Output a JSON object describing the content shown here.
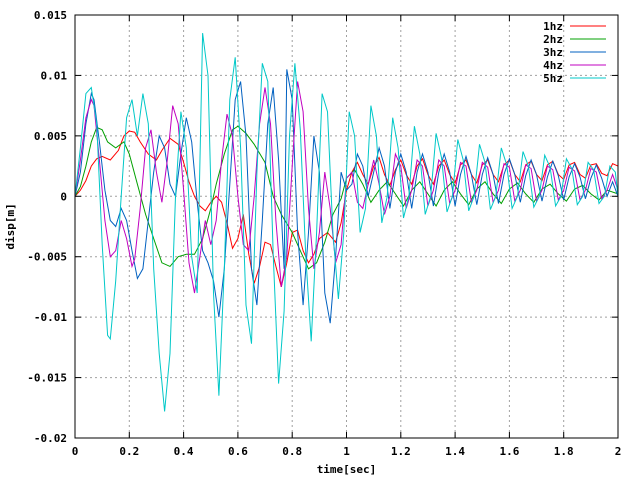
{
  "chart_data": {
    "type": "line",
    "title": "",
    "xlabel": "time[sec]",
    "ylabel": "disp[m]",
    "xlim": [
      0,
      2
    ],
    "ylim": [
      -0.02,
      0.015
    ],
    "grid": true,
    "legend_position": "top-right",
    "x_ticks": [
      0,
      0.2,
      0.4,
      0.6,
      0.8,
      1,
      1.2,
      1.4,
      1.6,
      1.8,
      2
    ],
    "x_tick_labels": [
      "0",
      "0.2",
      "0.4",
      "0.6",
      "0.8",
      "1",
      "1.2",
      "1.4",
      "1.6",
      "1.8",
      "2"
    ],
    "y_ticks": [
      -0.02,
      -0.015,
      -0.01,
      -0.005,
      0,
      0.005,
      0.01,
      0.015
    ],
    "y_tick_labels": [
      "-0.02",
      "-0.015",
      "-0.01",
      "-0.005",
      "0",
      "0.005",
      "0.01",
      "0.015"
    ],
    "series": [
      {
        "name": "1hz",
        "color": "#ff0000",
        "x": [
          0,
          0.02,
          0.04,
          0.06,
          0.08,
          0.1,
          0.13,
          0.16,
          0.18,
          0.2,
          0.22,
          0.24,
          0.27,
          0.3,
          0.32,
          0.35,
          0.38,
          0.4,
          0.42,
          0.44,
          0.46,
          0.48,
          0.5,
          0.52,
          0.54,
          0.56,
          0.58,
          0.6,
          0.62,
          0.64,
          0.66,
          0.68,
          0.7,
          0.72,
          0.74,
          0.76,
          0.78,
          0.8,
          0.82,
          0.84,
          0.86,
          0.88,
          0.9,
          0.93,
          0.96,
          0.98,
          1.0,
          1.02,
          1.04,
          1.06,
          1.08,
          1.1,
          1.12,
          1.14,
          1.16,
          1.18,
          1.2,
          1.22,
          1.24,
          1.26,
          1.28,
          1.3,
          1.32,
          1.34,
          1.36,
          1.38,
          1.4,
          1.42,
          1.44,
          1.46,
          1.48,
          1.5,
          1.52,
          1.54,
          1.56,
          1.58,
          1.6,
          1.62,
          1.64,
          1.66,
          1.68,
          1.7,
          1.72,
          1.74,
          1.76,
          1.78,
          1.8,
          1.82,
          1.84,
          1.86,
          1.88,
          1.9,
          1.92,
          1.94,
          1.96,
          1.98,
          2.0
        ],
        "y": [
          0,
          0.0005,
          0.0013,
          0.0025,
          0.0031,
          0.0033,
          0.003,
          0.0038,
          0.005,
          0.0054,
          0.0053,
          0.0045,
          0.0035,
          0.003,
          0.0038,
          0.0048,
          0.0043,
          0.0028,
          0.0012,
          0.0,
          -0.0008,
          -0.0012,
          -0.0005,
          0.0,
          -0.0005,
          -0.0022,
          -0.0043,
          -0.0035,
          -0.0015,
          -0.0048,
          -0.0072,
          -0.0058,
          -0.0038,
          -0.004,
          -0.0058,
          -0.0075,
          -0.0055,
          -0.003,
          -0.0028,
          -0.0045,
          -0.0055,
          -0.0048,
          -0.0035,
          -0.003,
          -0.0038,
          -0.0022,
          0.0005,
          0.002,
          0.0028,
          0.0018,
          0.001,
          0.0025,
          0.0032,
          0.0018,
          0.0009,
          0.0022,
          0.003,
          0.0018,
          0.001,
          0.0025,
          0.0031,
          0.0018,
          0.001,
          0.0025,
          0.003,
          0.0018,
          0.0011,
          0.0026,
          0.003,
          0.0018,
          0.0011,
          0.0026,
          0.003,
          0.0018,
          0.0012,
          0.0026,
          0.003,
          0.0018,
          0.0012,
          0.0026,
          0.0029,
          0.0018,
          0.0013,
          0.0026,
          0.0029,
          0.0018,
          0.0014,
          0.0026,
          0.0028,
          0.0018,
          0.0015,
          0.0026,
          0.0027,
          0.0019,
          0.0017,
          0.0027,
          0.0025
        ]
      },
      {
        "name": "2hz",
        "color": "#00a000",
        "x": [
          0,
          0.02,
          0.04,
          0.06,
          0.08,
          0.1,
          0.12,
          0.15,
          0.18,
          0.2,
          0.23,
          0.26,
          0.29,
          0.32,
          0.35,
          0.38,
          0.41,
          0.44,
          0.47,
          0.5,
          0.52,
          0.55,
          0.58,
          0.6,
          0.63,
          0.66,
          0.7,
          0.73,
          0.76,
          0.8,
          0.83,
          0.86,
          0.89,
          0.92,
          0.95,
          0.98,
          1.0,
          1.03,
          1.06,
          1.09,
          1.12,
          1.15,
          1.18,
          1.21,
          1.24,
          1.27,
          1.3,
          1.33,
          1.36,
          1.39,
          1.42,
          1.45,
          1.48,
          1.51,
          1.54,
          1.57,
          1.6,
          1.63,
          1.66,
          1.69,
          1.72,
          1.75,
          1.78,
          1.81,
          1.84,
          1.87,
          1.9,
          1.93,
          1.96,
          2.0
        ],
        "y": [
          0,
          0.0008,
          0.0025,
          0.0045,
          0.0057,
          0.0055,
          0.0045,
          0.004,
          0.0045,
          0.0035,
          0.001,
          -0.0015,
          -0.0035,
          -0.0055,
          -0.0058,
          -0.005,
          -0.0048,
          -0.0048,
          -0.0035,
          -0.001,
          0.001,
          0.0035,
          0.0055,
          0.0058,
          0.0052,
          0.0043,
          0.0028,
          0.0,
          -0.0015,
          -0.003,
          -0.0045,
          -0.006,
          -0.0055,
          -0.0038,
          -0.0015,
          -0.0002,
          0.0015,
          0.0022,
          0.001,
          -0.0005,
          0.0005,
          0.0012,
          0.0002,
          -0.0008,
          0.0005,
          0.0012,
          0.0002,
          -0.0008,
          0.0005,
          0.0012,
          0.0002,
          -0.0007,
          0.0006,
          0.0012,
          0.0002,
          -0.0006,
          0.0006,
          0.0011,
          0.0002,
          -0.0005,
          0.0006,
          0.001,
          0.0002,
          -0.0004,
          0.0006,
          0.0009,
          0.0002,
          -0.0003,
          0.0005,
          0.0002
        ]
      },
      {
        "name": "3hz",
        "color": "#0060c0",
        "x": [
          0,
          0.02,
          0.04,
          0.06,
          0.07,
          0.09,
          0.11,
          0.13,
          0.15,
          0.17,
          0.19,
          0.21,
          0.23,
          0.25,
          0.27,
          0.29,
          0.31,
          0.33,
          0.35,
          0.37,
          0.39,
          0.41,
          0.43,
          0.45,
          0.47,
          0.49,
          0.51,
          0.53,
          0.55,
          0.57,
          0.59,
          0.61,
          0.63,
          0.65,
          0.67,
          0.69,
          0.71,
          0.73,
          0.75,
          0.77,
          0.78,
          0.8,
          0.82,
          0.84,
          0.86,
          0.88,
          0.9,
          0.92,
          0.94,
          0.96,
          0.98,
          1.0,
          1.02,
          1.04,
          1.06,
          1.08,
          1.1,
          1.12,
          1.14,
          1.16,
          1.18,
          1.2,
          1.22,
          1.24,
          1.26,
          1.28,
          1.3,
          1.32,
          1.34,
          1.36,
          1.38,
          1.4,
          1.42,
          1.44,
          1.46,
          1.48,
          1.5,
          1.52,
          1.54,
          1.56,
          1.58,
          1.6,
          1.62,
          1.64,
          1.66,
          1.68,
          1.7,
          1.72,
          1.74,
          1.76,
          1.78,
          1.8,
          1.82,
          1.84,
          1.86,
          1.88,
          1.9,
          1.92,
          1.94,
          1.96,
          1.98,
          2.0
        ],
        "y": [
          0,
          0.002,
          0.006,
          0.0085,
          0.008,
          0.0045,
          0.0005,
          -0.002,
          -0.0025,
          -0.001,
          -0.002,
          -0.0045,
          -0.0068,
          -0.006,
          -0.002,
          0.002,
          0.005,
          0.004,
          0.001,
          0.0,
          0.0035,
          0.0065,
          0.0045,
          -0.0005,
          -0.0045,
          -0.0055,
          -0.007,
          -0.01,
          -0.006,
          0.001,
          0.008,
          0.0095,
          0.005,
          -0.006,
          -0.009,
          -0.002,
          0.006,
          0.009,
          0.003,
          -0.006,
          0.0105,
          0.008,
          -0.003,
          -0.009,
          -0.003,
          0.005,
          0.002,
          -0.008,
          -0.0105,
          -0.005,
          0.002,
          0.0005,
          0.001,
          0.0035,
          0.0025,
          0.0,
          0.002,
          0.004,
          0.0025,
          -0.001,
          0.002,
          0.0035,
          0.002,
          -0.001,
          0.002,
          0.0035,
          0.002,
          -0.0008,
          0.002,
          0.0035,
          0.002,
          -0.0008,
          0.0018,
          0.0033,
          0.0018,
          -0.0007,
          0.0018,
          0.0032,
          0.0018,
          -0.0006,
          0.0018,
          0.0031,
          0.0018,
          -0.0005,
          0.0017,
          0.003,
          0.0018,
          -0.0004,
          0.0016,
          0.0029,
          0.0017,
          -0.0003,
          0.0016,
          0.0027,
          0.0016,
          -0.0002,
          0.0015,
          0.0026,
          0.0015,
          0.0,
          0.0012,
          0.0
        ]
      },
      {
        "name": "4hz",
        "color": "#c000c0",
        "x": [
          0,
          0.02,
          0.04,
          0.06,
          0.07,
          0.09,
          0.11,
          0.13,
          0.15,
          0.17,
          0.19,
          0.21,
          0.22,
          0.24,
          0.26,
          0.28,
          0.3,
          0.32,
          0.34,
          0.36,
          0.38,
          0.4,
          0.42,
          0.44,
          0.46,
          0.48,
          0.5,
          0.52,
          0.54,
          0.56,
          0.58,
          0.6,
          0.62,
          0.64,
          0.66,
          0.68,
          0.7,
          0.72,
          0.74,
          0.76,
          0.78,
          0.8,
          0.82,
          0.84,
          0.86,
          0.88,
          0.9,
          0.92,
          0.94,
          0.96,
          0.98,
          1.0,
          1.02,
          1.04,
          1.06,
          1.08,
          1.1,
          1.12,
          1.14,
          1.16,
          1.18,
          1.2,
          1.22,
          1.24,
          1.26,
          1.28,
          1.3,
          1.32,
          1.34,
          1.36,
          1.38,
          1.4,
          1.42,
          1.44,
          1.46,
          1.48,
          1.5,
          1.52,
          1.54,
          1.56,
          1.58,
          1.6,
          1.62,
          1.64,
          1.66,
          1.68,
          1.7,
          1.72,
          1.74,
          1.76,
          1.78,
          1.8,
          1.82,
          1.84,
          1.86,
          1.88,
          1.9,
          1.92,
          1.94,
          1.96,
          1.98,
          2.0
        ],
        "y": [
          0,
          0.003,
          0.0065,
          0.008,
          0.0075,
          0.003,
          -0.002,
          -0.005,
          -0.0045,
          -0.002,
          -0.0035,
          -0.0058,
          -0.0052,
          -0.001,
          0.004,
          0.0055,
          0.002,
          -0.0005,
          0.003,
          0.0075,
          0.006,
          0.0005,
          -0.0055,
          -0.008,
          -0.005,
          -0.002,
          -0.004,
          -0.002,
          0.003,
          0.0068,
          0.005,
          0.0,
          -0.004,
          -0.0045,
          0.0,
          0.006,
          0.009,
          0.006,
          -0.002,
          -0.0075,
          -0.005,
          0.0025,
          0.0095,
          0.007,
          -0.001,
          -0.006,
          -0.003,
          0.002,
          -0.001,
          -0.0055,
          -0.004,
          0.0015,
          0.002,
          -0.0005,
          -0.001,
          0.001,
          0.003,
          0.001,
          -0.0015,
          0.0,
          0.0035,
          0.0025,
          -0.001,
          0.0005,
          0.003,
          0.0025,
          -0.0008,
          0.0005,
          0.003,
          0.0025,
          -0.0006,
          0.0005,
          0.0028,
          0.0025,
          -0.0005,
          0.0005,
          0.0028,
          0.0024,
          -0.0005,
          0.0005,
          0.0027,
          0.0024,
          -0.0004,
          0.0005,
          0.0026,
          0.0023,
          -0.0004,
          0.0005,
          0.0025,
          0.0022,
          -0.0003,
          0.0005,
          0.0024,
          0.0021,
          -0.0003,
          0.0005,
          0.0023,
          0.002,
          -0.0002,
          0.0005,
          0.0018,
          0.0005
        ]
      },
      {
        "name": "5hz",
        "color": "#00c8c8",
        "x": [
          0,
          0.02,
          0.04,
          0.06,
          0.08,
          0.1,
          0.12,
          0.13,
          0.15,
          0.17,
          0.19,
          0.21,
          0.23,
          0.25,
          0.27,
          0.29,
          0.31,
          0.33,
          0.35,
          0.37,
          0.39,
          0.41,
          0.43,
          0.45,
          0.47,
          0.49,
          0.51,
          0.53,
          0.55,
          0.57,
          0.59,
          0.61,
          0.63,
          0.65,
          0.67,
          0.69,
          0.71,
          0.73,
          0.75,
          0.77,
          0.79,
          0.81,
          0.83,
          0.85,
          0.87,
          0.89,
          0.91,
          0.93,
          0.95,
          0.97,
          0.99,
          1.01,
          1.03,
          1.05,
          1.07,
          1.09,
          1.11,
          1.13,
          1.15,
          1.17,
          1.19,
          1.21,
          1.23,
          1.25,
          1.27,
          1.29,
          1.31,
          1.33,
          1.35,
          1.37,
          1.39,
          1.41,
          1.43,
          1.45,
          1.47,
          1.49,
          1.51,
          1.53,
          1.55,
          1.57,
          1.59,
          1.61,
          1.63,
          1.65,
          1.67,
          1.69,
          1.71,
          1.73,
          1.75,
          1.77,
          1.79,
          1.81,
          1.83,
          1.85,
          1.87,
          1.89,
          1.91,
          1.93,
          1.95,
          1.97,
          1.99,
          2.0
        ],
        "y": [
          0,
          0.004,
          0.0085,
          0.009,
          0.006,
          -0.004,
          -0.0115,
          -0.0118,
          -0.007,
          0.0,
          0.0065,
          0.008,
          0.005,
          0.0085,
          0.006,
          -0.006,
          -0.013,
          -0.0178,
          -0.013,
          0.0,
          0.007,
          0.004,
          -0.005,
          -0.008,
          0.0135,
          0.01,
          -0.008,
          -0.0165,
          -0.006,
          0.008,
          0.0115,
          0.004,
          -0.009,
          -0.0122,
          0.002,
          0.011,
          0.0095,
          -0.0048,
          -0.0155,
          -0.0095,
          0.005,
          0.011,
          0.0055,
          -0.005,
          -0.012,
          -0.003,
          0.0085,
          0.007,
          -0.003,
          -0.0085,
          -0.003,
          0.007,
          0.005,
          -0.003,
          -0.001,
          0.0075,
          0.005,
          -0.0022,
          0.0,
          0.0065,
          0.004,
          -0.0018,
          0.0,
          0.0058,
          0.0035,
          -0.0015,
          0.0,
          0.0052,
          0.0032,
          -0.0013,
          0.0,
          0.0047,
          0.003,
          -0.0012,
          0.0,
          0.0043,
          0.0028,
          -0.0011,
          0.0,
          0.004,
          0.0026,
          -0.001,
          0.0,
          0.0037,
          0.0025,
          -0.0009,
          0.0,
          0.0034,
          0.0024,
          -0.0008,
          0.0,
          0.0031,
          0.0023,
          -0.0007,
          0.0,
          0.0028,
          0.0022,
          -0.0006,
          0.0,
          0.0025,
          0.002,
          0.0
        ]
      }
    ]
  }
}
